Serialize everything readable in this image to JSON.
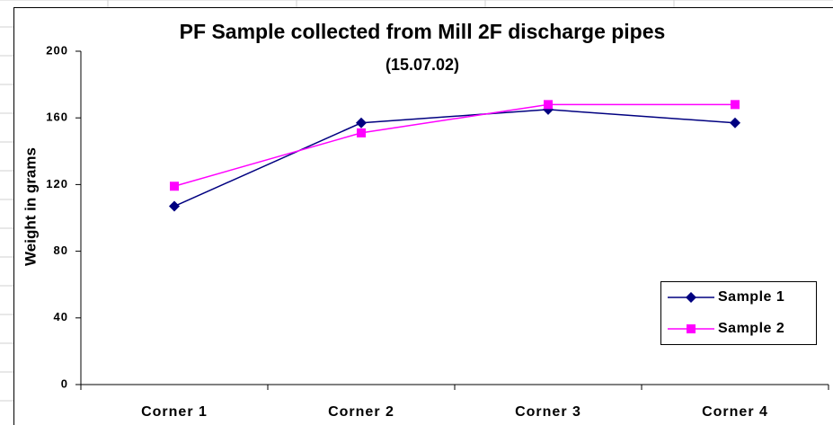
{
  "chart_data": {
    "type": "line",
    "title": "PF Sample collected from Mill 2F discharge pipes",
    "subtitle": "(15.07.02)",
    "y_label": "Weight in grams",
    "categories": [
      "Corner 1",
      "Corner 2",
      "Corner 3",
      "Corner 4"
    ],
    "series": [
      {
        "name": "Sample 1",
        "color": "#000080",
        "marker": "diamond",
        "values": [
          107,
          157,
          165,
          157
        ]
      },
      {
        "name": "Sample 2",
        "color": "#ff00ff",
        "marker": "square",
        "values": [
          119,
          151,
          168,
          168
        ]
      }
    ],
    "ylim": [
      0,
      200
    ],
    "yticks": [
      0,
      40,
      80,
      120,
      160,
      200
    ],
    "grid": false,
    "legend": "lower right"
  }
}
